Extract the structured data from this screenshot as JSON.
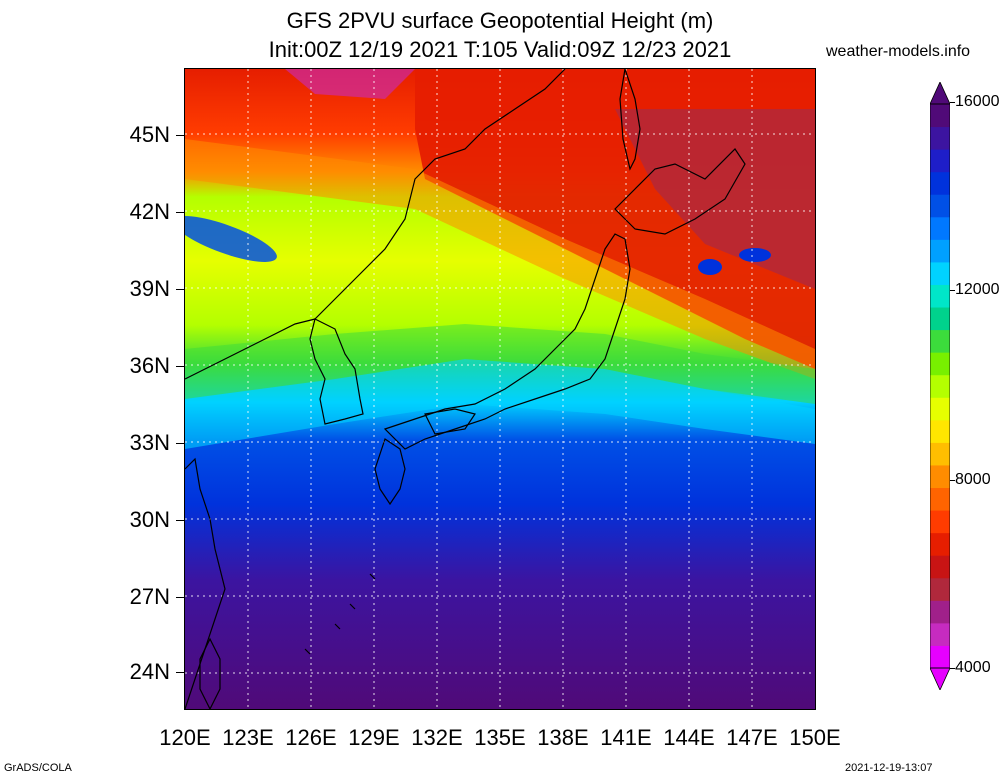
{
  "title": {
    "line1": "GFS 2PVU surface Geopotential Height (m)",
    "line2": "Init:00Z 12/19 2021 T:105 Valid:09Z 12/23 2021"
  },
  "source_site": "weather-models.info",
  "footer": {
    "left": "GrADS/COLA",
    "right": "2021-12-19-13:07"
  },
  "map": {
    "lon_range": [
      120,
      150
    ],
    "lat_range": [
      22.5,
      47.5
    ],
    "grid": true,
    "lat_labels": [
      "45N",
      "42N",
      "39N",
      "36N",
      "33N",
      "30N",
      "27N",
      "24N"
    ],
    "lat_values": [
      45,
      42,
      39,
      36,
      33,
      30,
      27,
      24
    ],
    "lon_labels": [
      "120E",
      "123E",
      "126E",
      "129E",
      "132E",
      "135E",
      "138E",
      "141E",
      "144E",
      "147E",
      "150E"
    ],
    "lon_values": [
      120,
      123,
      126,
      129,
      132,
      135,
      138,
      141,
      144,
      147,
      150
    ]
  },
  "colorbar": {
    "labels": [
      "16000",
      "12000",
      "8000",
      "4000"
    ],
    "values": [
      16000,
      12000,
      8000,
      4000
    ],
    "min": 4000,
    "max": 16000,
    "colors": [
      "#e600ff",
      "#c62bc0",
      "#a0208a",
      "#b0283c",
      "#c81414",
      "#e61e00",
      "#ff3c00",
      "#ff6400",
      "#ff8c00",
      "#ffbe00",
      "#ffe600",
      "#e6ff00",
      "#b4ff00",
      "#78f000",
      "#3cdc3c",
      "#00d28c",
      "#00e6c8",
      "#00d2ff",
      "#00a0ff",
      "#0078ff",
      "#0050e6",
      "#0032dc",
      "#1e1ec8",
      "#3c14a0",
      "#500a78"
    ]
  }
}
